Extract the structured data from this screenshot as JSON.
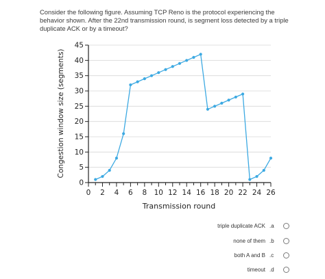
{
  "question": {
    "text": "Consider the following figure. Assuming TCP Reno is the protocol experiencing the behavior shown. After the 22nd transmission round, is segment loss detected by a triple duplicate ACK or by a timeout?"
  },
  "chart_data": {
    "type": "line",
    "xlabel": "Transmission round",
    "ylabel": "Congestion window size (segments)",
    "xlim": [
      0,
      26
    ],
    "ylim": [
      0,
      45
    ],
    "xticks": [
      "0",
      "2",
      "4",
      "6",
      "8",
      "10",
      "12",
      "14",
      "16",
      "18",
      "20",
      "22",
      "24",
      "26"
    ],
    "yticks": [
      "0",
      "5",
      "10",
      "15",
      "20",
      "25",
      "30",
      "35",
      "40",
      "45"
    ],
    "grid": "horizontal",
    "line_color": "#3ca9e2",
    "series": [
      {
        "x": [
          1,
          2,
          3,
          4,
          5,
          6,
          7,
          8,
          9,
          10,
          11,
          12,
          13,
          14,
          15,
          16,
          17,
          18,
          19,
          20,
          21,
          22,
          23,
          24,
          25,
          26
        ],
        "values": [
          1,
          2,
          4,
          8,
          16,
          32,
          33,
          34,
          35,
          36,
          37,
          38,
          39,
          40,
          41,
          42,
          24,
          25,
          26,
          27,
          28,
          29,
          1,
          2,
          4,
          8
        ]
      }
    ]
  },
  "options": [
    {
      "text": "triple duplicate ACK",
      "key": ".a"
    },
    {
      "text": "none of them",
      "key": ".b"
    },
    {
      "text": "both A and B",
      "key": ".c"
    },
    {
      "text": "timeout",
      "key": ".d"
    }
  ]
}
